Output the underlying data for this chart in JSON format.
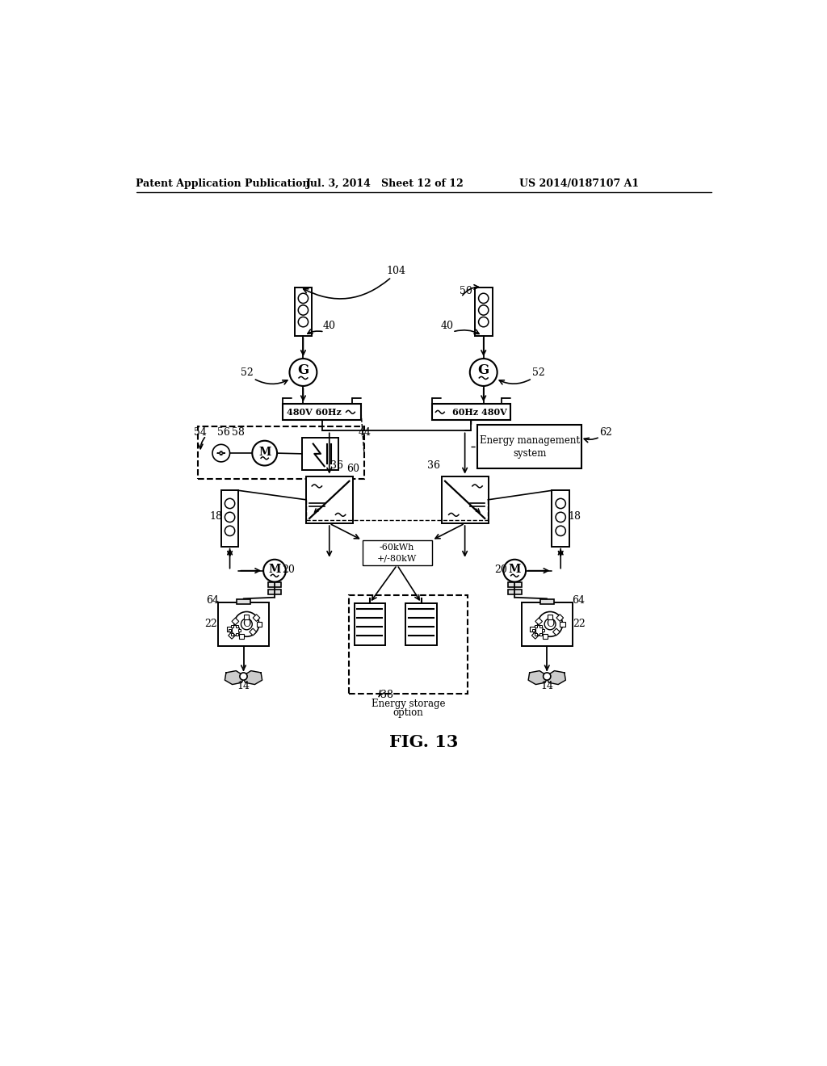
{
  "bg_color": "#ffffff",
  "header_left": "Patent Application Publication",
  "header_mid": "Jul. 3, 2014   Sheet 12 of 12",
  "header_right": "US 2014/0187107 A1",
  "fig_caption": "FIG. 13",
  "shore_left_text": "480V 60Hz",
  "shore_right_text": "60Hz 480V",
  "ems_line1": "Energy management",
  "ems_line2": "system",
  "es_line1": "Energy storage",
  "es_line2": "option",
  "energy_label1": "-60kWh",
  "energy_label2": "+/-80kW"
}
